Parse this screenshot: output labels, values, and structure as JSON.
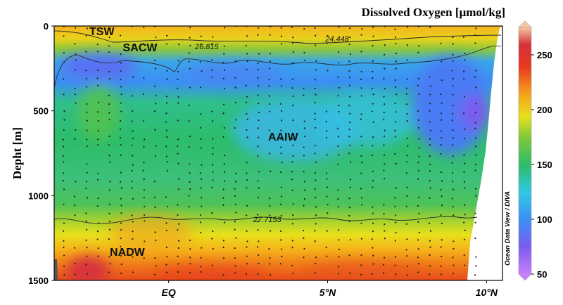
{
  "chart_data": {
    "type": "heatmap",
    "title": "Dissolved Oxygen  [µmol/kg]",
    "ylabel": "Depht  [m]",
    "xlabel": "",
    "credit": "Ocean Data View / DIVA",
    "x_ticks": [
      {
        "lat": 0,
        "label": "EQ"
      },
      {
        "lat": 5,
        "label": "5°N"
      },
      {
        "lat": 10,
        "label": "10°N"
      }
    ],
    "y_ticks": [
      {
        "depth": 0,
        "label": "0"
      },
      {
        "depth": 500,
        "label": "500"
      },
      {
        "depth": 1000,
        "label": "1000"
      },
      {
        "depth": 1500,
        "label": "1500"
      }
    ],
    "xlim": [
      -3.6,
      10.5
    ],
    "ylim": [
      1500,
      0
    ],
    "colorbar": {
      "min": 50,
      "max": 275,
      "ticks": [
        {
          "value": 250,
          "label": "250"
        },
        {
          "value": 200,
          "label": "200"
        },
        {
          "value": 150,
          "label": "150"
        },
        {
          "value": 100,
          "label": "100"
        },
        {
          "value": 50,
          "label": "50"
        }
      ],
      "stops": [
        {
          "v": 50,
          "color": "#c77dff"
        },
        {
          "v": 75,
          "color": "#7b5cf0"
        },
        {
          "v": 100,
          "color": "#3c8ff5"
        },
        {
          "v": 125,
          "color": "#30c8e6"
        },
        {
          "v": 150,
          "color": "#2dbd6a"
        },
        {
          "v": 175,
          "color": "#7cc83a"
        },
        {
          "v": 195,
          "color": "#e8e01c"
        },
        {
          "v": 215,
          "color": "#f5a21a"
        },
        {
          "v": 240,
          "color": "#e83a1e"
        },
        {
          "v": 260,
          "color": "#d6303c"
        },
        {
          "v": 275,
          "color": "#f5c7a0"
        }
      ]
    },
    "water_masses": [
      {
        "label": "TSW",
        "lat": -2.1,
        "depth": 30
      },
      {
        "label": "SACW",
        "lat": -0.9,
        "depth": 125
      },
      {
        "label": "AAIW",
        "lat": 3.6,
        "depth": 650
      },
      {
        "label": "NADW",
        "lat": -1.3,
        "depth": 1330
      }
    ],
    "isopycnals": [
      {
        "label": "26.815",
        "lat": 1.2,
        "depth": 120
      },
      {
        "label": "24.448",
        "lat": 5.3,
        "depth": 75
      },
      {
        "label": "27.7153",
        "lat": 3.1,
        "depth": 1140
      }
    ]
  }
}
